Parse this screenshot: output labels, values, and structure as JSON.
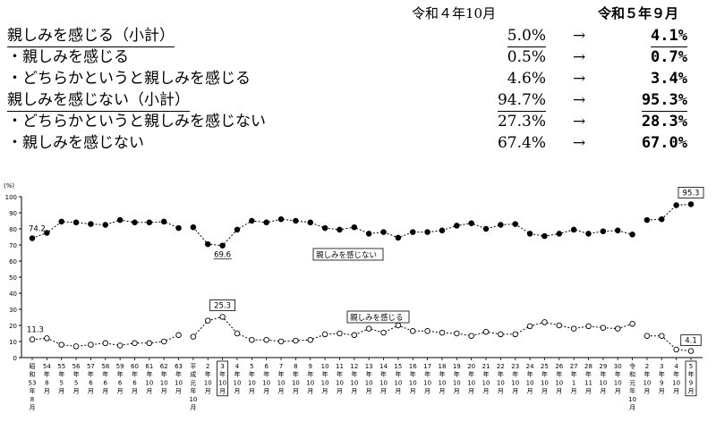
{
  "summary": {
    "header_prev": "令和４年10月",
    "header_curr": "令和５年９月",
    "arrow": "→",
    "rows": [
      {
        "label": "親しみを感じる（小計）",
        "prev": "5.0%",
        "curr": "4.1%",
        "underline": true
      },
      {
        "label": "・親しみを感じる",
        "prev": "0.5%",
        "curr": "0.7%",
        "underline": false
      },
      {
        "label": "・どちらかというと親しみを感じる",
        "prev": "4.6%",
        "curr": "3.4%",
        "underline": false
      },
      {
        "label": "親しみを感じない（小計）",
        "prev": "94.7%",
        "curr": "95.3%",
        "underline": true
      },
      {
        "label": "・どちらかというと親しみを感じない",
        "prev": "27.3%",
        "curr": "28.3%",
        "underline": false
      },
      {
        "label": "・親しみを感じない",
        "prev": "67.4%",
        "curr": "67.0%",
        "underline": false
      }
    ]
  },
  "chart_data": {
    "type": "line",
    "ylabel": "(%)",
    "ylim": [
      0,
      100
    ],
    "yticks": [
      0,
      10,
      20,
      30,
      40,
      50,
      60,
      70,
      80,
      90,
      100
    ],
    "grid": false,
    "categories": [
      "昭和53年8月",
      "54年8月",
      "55年5月",
      "56年5月",
      "57年6月",
      "58年6月",
      "59年6月",
      "60年6月",
      "61年10月",
      "62年10月",
      "63年10月",
      "平成元年10月",
      "2年10月",
      "3年10月",
      "4年10月",
      "5年10月",
      "6年10月",
      "7年10月",
      "8年10月",
      "9年10月",
      "10年10月",
      "11年10月",
      "12年10月",
      "13年10月",
      "14年10月",
      "15年10月",
      "16年10月",
      "17年10月",
      "18年10月",
      "19年10月",
      "20年10月",
      "21年10月",
      "22年10月",
      "23年10月",
      "24年10月",
      "25年10月",
      "26年10月",
      "27年1月",
      "28年11月",
      "29年10月",
      "30年10月",
      "令和元年10月",
      "2年10月",
      "3年9月",
      "4年10月",
      "5年9月"
    ],
    "tick_labels": [
      [
        "昭",
        "和",
        "53",
        "年",
        "8",
        "月"
      ],
      [
        "54",
        "年",
        "8",
        "月"
      ],
      [
        "55",
        "年",
        "5",
        "月"
      ],
      [
        "56",
        "年",
        "5",
        "月"
      ],
      [
        "57",
        "年",
        "6",
        "月"
      ],
      [
        "58",
        "年",
        "6",
        "月"
      ],
      [
        "59",
        "年",
        "6",
        "月"
      ],
      [
        "60",
        "年",
        "6",
        "月"
      ],
      [
        "61",
        "年",
        "10",
        "月"
      ],
      [
        "62",
        "年",
        "10",
        "月"
      ],
      [
        "63",
        "年",
        "10",
        "月"
      ],
      [
        "平",
        "成",
        "元",
        "年",
        "10",
        "月"
      ],
      [
        "2",
        "年",
        "10",
        "月"
      ],
      [
        "3",
        "年",
        "10",
        "月"
      ],
      [
        "4",
        "年",
        "10",
        "月"
      ],
      [
        "5",
        "年",
        "10",
        "月"
      ],
      [
        "6",
        "年",
        "10",
        "月"
      ],
      [
        "7",
        "年",
        "10",
        "月"
      ],
      [
        "8",
        "年",
        "10",
        "月"
      ],
      [
        "9",
        "年",
        "10",
        "月"
      ],
      [
        "10",
        "年",
        "10",
        "月"
      ],
      [
        "11",
        "年",
        "10",
        "月"
      ],
      [
        "12",
        "年",
        "10",
        "月"
      ],
      [
        "13",
        "年",
        "10",
        "月"
      ],
      [
        "14",
        "年",
        "10",
        "月"
      ],
      [
        "15",
        "年",
        "10",
        "月"
      ],
      [
        "16",
        "年",
        "10",
        "月"
      ],
      [
        "17",
        "年",
        "10",
        "月"
      ],
      [
        "18",
        "年",
        "10",
        "月"
      ],
      [
        "19",
        "年",
        "10",
        "月"
      ],
      [
        "20",
        "年",
        "10",
        "月"
      ],
      [
        "21",
        "年",
        "10",
        "月"
      ],
      [
        "22",
        "年",
        "10",
        "月"
      ],
      [
        "23",
        "年",
        "10",
        "月"
      ],
      [
        "24",
        "年",
        "10",
        "月"
      ],
      [
        "25",
        "年",
        "10",
        "月"
      ],
      [
        "26",
        "年",
        "10",
        "月"
      ],
      [
        "27",
        "年",
        "1",
        "月"
      ],
      [
        "28",
        "年",
        "11",
        "月"
      ],
      [
        "29",
        "年",
        "10",
        "月"
      ],
      [
        "30",
        "年",
        "10",
        "月"
      ],
      [
        "令",
        "和",
        "元",
        "年",
        "10",
        "月"
      ],
      [
        "2",
        "年",
        "10",
        "月"
      ],
      [
        "3",
        "年",
        "9",
        "月"
      ],
      [
        "4",
        "年",
        "10",
        "月"
      ],
      [
        "5",
        "年",
        "9",
        "月"
      ]
    ],
    "boxed_ticks": [
      13,
      45
    ],
    "series": [
      {
        "name": "親しみを感じない",
        "marker": "filled",
        "values": [
          74.2,
          77.5,
          84.5,
          84.0,
          83.0,
          82.5,
          85.5,
          84.0,
          84.0,
          84.5,
          80.5,
          81.0,
          70.5,
          69.6,
          79.5,
          85.0,
          84.0,
          86.0,
          85.0,
          84.0,
          80.5,
          79.5,
          81.0,
          77.0,
          78.0,
          74.5,
          78.0,
          78.0,
          79.0,
          82.0,
          83.5,
          80.0,
          82.5,
          83.0,
          77.0,
          75.5,
          77.0,
          79.5,
          77.0,
          78.5,
          79.0,
          76.5,
          85.5,
          86.0,
          94.7,
          95.3
        ]
      },
      {
        "name": "親しみを感じる",
        "marker": "open",
        "values": [
          11.3,
          12.0,
          8.0,
          7.0,
          8.0,
          9.0,
          7.5,
          9.0,
          9.0,
          10.0,
          14.0,
          13.0,
          23.0,
          25.3,
          15.0,
          11.0,
          11.0,
          10.0,
          10.5,
          11.0,
          14.5,
          15.0,
          14.0,
          18.0,
          15.5,
          20.0,
          16.5,
          16.5,
          15.5,
          15.0,
          13.5,
          16.0,
          14.5,
          14.5,
          19.5,
          22.0,
          20.0,
          18.0,
          19.5,
          18.5,
          18.0,
          21.0,
          13.5,
          13.5,
          5.0,
          4.1
        ]
      }
    ],
    "annotations": [
      {
        "text": "74.2",
        "series": 0,
        "index": 0,
        "boxed": false
      },
      {
        "text": "69.6",
        "series": 0,
        "index": 13,
        "boxed": false
      },
      {
        "text": "95.3",
        "series": 0,
        "index": 45,
        "boxed": true
      },
      {
        "text": "11.3",
        "series": 1,
        "index": 0,
        "boxed": false
      },
      {
        "text": "25.3",
        "series": 1,
        "index": 13,
        "boxed": true
      },
      {
        "text": "4.1",
        "series": 1,
        "index": 45,
        "boxed": true
      }
    ]
  }
}
